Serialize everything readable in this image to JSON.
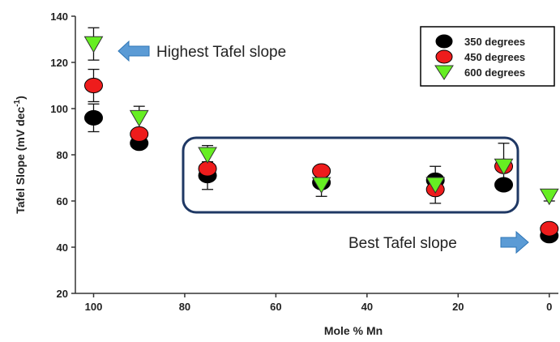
{
  "chart_data": {
    "type": "scatter",
    "xlabel": "Mole % Mn",
    "ylabel": "Tafel Slope (mV dec",
    "ylabel_sup": "-1",
    "ylabel_close": ")",
    "xlim": [
      104,
      -2
    ],
    "ylim": [
      20,
      140
    ],
    "x_ticks": [
      100,
      80,
      60,
      40,
      20,
      0
    ],
    "y_ticks": [
      20,
      40,
      60,
      80,
      100,
      120,
      140
    ],
    "grid": false,
    "legend_position": "top-right",
    "series": [
      {
        "name": "350 degrees",
        "marker": "circle",
        "color": "#000000",
        "x": [
          100,
          90,
          75,
          50,
          25,
          10,
          0
        ],
        "y": [
          96,
          85,
          71,
          68,
          69,
          67,
          45
        ],
        "err": [
          6,
          0,
          6,
          0,
          0,
          0,
          0
        ]
      },
      {
        "name": "450 degrees",
        "marker": "circle",
        "color": "#ee1c1c",
        "x": [
          100,
          90,
          75,
          50,
          25,
          10,
          0
        ],
        "y": [
          110,
          89,
          74,
          73,
          65,
          75,
          48
        ],
        "err": [
          7,
          0,
          0,
          0,
          0,
          0,
          0
        ]
      },
      {
        "name": "600 degrees",
        "marker": "triangle-down",
        "color": "#66ee22",
        "x": [
          100,
          90,
          75,
          50,
          25,
          10,
          0
        ],
        "y": [
          128,
          96,
          80,
          67,
          67,
          75,
          62
        ],
        "err": [
          7,
          5,
          4,
          5,
          8,
          10,
          2
        ]
      }
    ],
    "annotations": [
      {
        "text": "Highest Tafel slope",
        "x": 100,
        "y": 127
      },
      {
        "text": "Best Tafel slope",
        "x": 0,
        "y": 46
      }
    ]
  }
}
